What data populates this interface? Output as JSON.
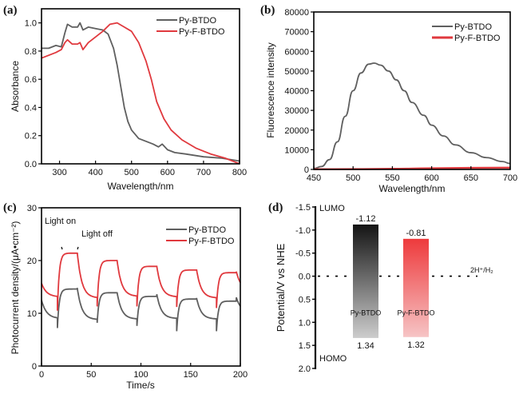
{
  "colors": {
    "series1": "#5f5f5f",
    "series2": "#e0393e",
    "axis": "#000000"
  },
  "chart_data": [
    {
      "panel": "(a)",
      "type": "line",
      "xlabel": "Wavelength/nm",
      "ylabel": "Absorbance",
      "xlim": [
        250,
        800
      ],
      "ylim": [
        0.0,
        1.1
      ],
      "xticks": [
        300,
        400,
        500,
        600,
        700,
        800
      ],
      "yticks": [
        0.0,
        0.2,
        0.4,
        0.6,
        0.8,
        1.0
      ],
      "xtick_labels": [
        "300",
        "400",
        "500",
        "600",
        "700",
        "800"
      ],
      "ytick_labels": [
        "0.0",
        "0.2",
        "0.4",
        "0.6",
        "0.8",
        "1.0"
      ],
      "legend": "top-right",
      "series": [
        {
          "name": "Py-BTDO",
          "x": [
            250,
            270,
            290,
            305,
            315,
            322,
            335,
            350,
            357,
            365,
            380,
            400,
            420,
            435,
            450,
            460,
            470,
            480,
            490,
            500,
            520,
            540,
            560,
            575,
            585,
            600,
            620,
            650,
            700,
            750,
            800
          ],
          "y": [
            0.82,
            0.82,
            0.84,
            0.83,
            0.93,
            0.99,
            0.97,
            0.97,
            1.0,
            0.95,
            0.97,
            0.96,
            0.95,
            0.92,
            0.82,
            0.7,
            0.55,
            0.4,
            0.3,
            0.24,
            0.18,
            0.16,
            0.14,
            0.12,
            0.14,
            0.1,
            0.08,
            0.07,
            0.05,
            0.04,
            0.02
          ]
        },
        {
          "name": "Py-F-BTDO",
          "x": [
            250,
            270,
            290,
            305,
            315,
            322,
            335,
            350,
            357,
            365,
            380,
            400,
            420,
            440,
            460,
            480,
            500,
            520,
            540,
            555,
            570,
            590,
            610,
            640,
            680,
            720,
            760,
            790,
            800
          ],
          "y": [
            0.75,
            0.77,
            0.79,
            0.81,
            0.86,
            0.88,
            0.85,
            0.85,
            0.86,
            0.81,
            0.86,
            0.9,
            0.94,
            0.99,
            1.0,
            0.97,
            0.94,
            0.86,
            0.73,
            0.6,
            0.44,
            0.32,
            0.24,
            0.17,
            0.11,
            0.07,
            0.04,
            0.01,
            0.0
          ]
        }
      ]
    },
    {
      "panel": "(b)",
      "type": "line",
      "xlabel": "Wavelength/nm",
      "ylabel": "Fluorescence intensity",
      "xlim": [
        450,
        700
      ],
      "ylim": [
        0,
        80000
      ],
      "xticks": [
        450,
        500,
        550,
        600,
        650,
        700
      ],
      "yticks": [
        0,
        10000,
        20000,
        30000,
        40000,
        50000,
        60000,
        70000,
        80000
      ],
      "xtick_labels": [
        "450",
        "500",
        "550",
        "600",
        "650",
        "700"
      ],
      "ytick_labels": [
        "0",
        "10000",
        "20000",
        "30000",
        "40000",
        "50000",
        "60000",
        "70000",
        "80000"
      ],
      "legend": "top-right",
      "series": [
        {
          "name": "Py-BTDO",
          "x": [
            450,
            460,
            470,
            480,
            490,
            500,
            510,
            520,
            527,
            535,
            545,
            555,
            565,
            575,
            590,
            600,
            615,
            630,
            650,
            670,
            690,
            700
          ],
          "y": [
            500,
            1500,
            5000,
            14000,
            27000,
            40000,
            49000,
            53500,
            54000,
            53000,
            50000,
            45500,
            40000,
            34000,
            27500,
            22500,
            17000,
            12500,
            8500,
            6000,
            4000,
            3000
          ]
        },
        {
          "name": "Py-F-BTDO",
          "x": [
            450,
            500,
            550,
            600,
            650,
            700
          ],
          "y": [
            100,
            150,
            300,
            600,
            800,
            900
          ]
        }
      ]
    },
    {
      "panel": "(c)",
      "type": "line",
      "xlabel": "Time/s",
      "ylabel": "Photocurrent  density/(μA•cm⁻²)",
      "xlim": [
        0,
        200
      ],
      "ylim": [
        0,
        30
      ],
      "xticks": [
        0,
        50,
        100,
        150,
        200
      ],
      "yticks": [
        0,
        10,
        20,
        30
      ],
      "xtick_labels": [
        "0",
        "50",
        "100",
        "150",
        "200"
      ],
      "ytick_labels": [
        "0",
        "10",
        "20",
        "30"
      ],
      "legend": "top-right",
      "annotations": [
        "Light on",
        "Light off"
      ],
      "light_on_times": [
        16,
        56,
        96,
        136,
        176
      ],
      "light_off_times": [
        36,
        76,
        116,
        156,
        196
      ],
      "series": [
        {
          "name": "Py-BTDO",
          "start": 12.5,
          "on_start": [
            7.2,
            8.2,
            7.6,
            6.6,
            6.6
          ],
          "on_plateau": [
            14.6,
            13.9,
            13.2,
            12.7,
            12.3
          ],
          "off_spike": [
            14.8,
            14.0,
            13.6,
            12.9,
            13.0
          ],
          "off_end": [
            8.8,
            8.9,
            9.0,
            8.9,
            10.2
          ]
        },
        {
          "name": "Py-F-BTDO",
          "start": 15.7,
          "on_start": [
            10.5,
            11.3,
            11.3,
            11.2,
            11.0
          ],
          "on_plateau": [
            21.4,
            20.0,
            18.9,
            18.2,
            17.7
          ],
          "off_spike": [
            21.5,
            20.1,
            18.9,
            18.3,
            17.9
          ],
          "off_end": [
            12.9,
            13.2,
            13.1,
            12.9,
            14.4
          ]
        }
      ]
    },
    {
      "panel": "(d)",
      "type": "bar",
      "ylabel": "Potential/V vs NHE",
      "ylim": [
        -1.5,
        2.0
      ],
      "inverted_y": true,
      "yticks": [
        -1.5,
        -1.0,
        -0.5,
        0.0,
        0.5,
        1.0,
        1.5,
        2.0
      ],
      "ytick_labels": [
        "-1.5",
        "-1.0",
        "-0.5",
        "0.0",
        "0.5",
        "1.0",
        "1.5",
        "2.0"
      ],
      "categories": [
        "Py-BTDO",
        "Py-F-BTDO"
      ],
      "lumo": [
        -1.12,
        -0.81
      ],
      "homo": [
        1.34,
        1.32
      ],
      "lumo_labels": [
        "-1.12",
        "-0.81"
      ],
      "homo_labels": [
        "1.34",
        "1.32"
      ],
      "axis_top_label": "LUMO",
      "axis_bottom_label": "HOMO",
      "reference_line": {
        "value": 0.0,
        "label": "2H⁺/H₂"
      }
    }
  ]
}
